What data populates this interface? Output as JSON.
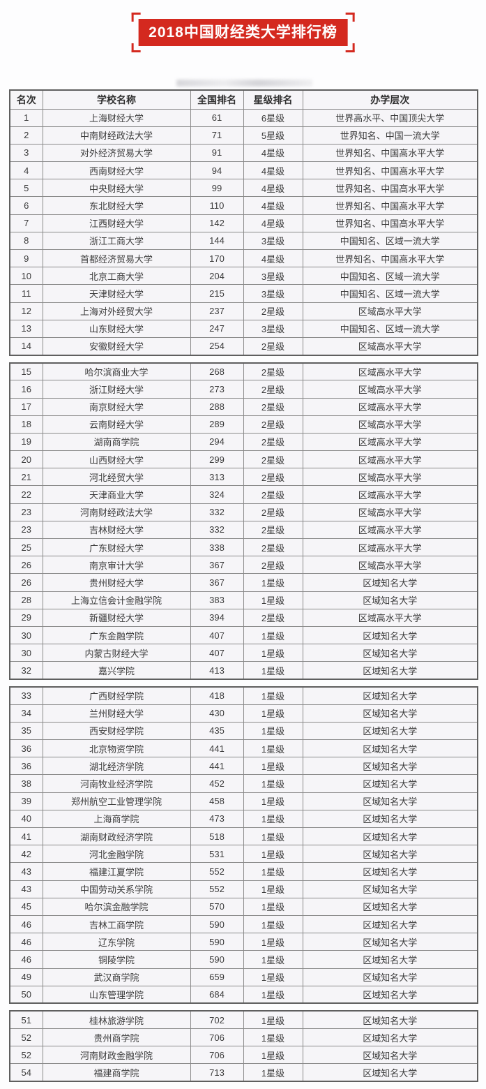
{
  "title": "2018中国财经类大学排行榜",
  "colors": {
    "accent_red": "#d4291f",
    "cell_background": "#f6f5f8",
    "border_outer": "#5f5f5f",
    "border_inner": "#8a8a8a",
    "text": "#3b3b3b"
  },
  "table": {
    "headers": [
      "名次",
      "学校名称",
      "全国排名",
      "星级排名",
      "办学层次"
    ],
    "column_keys": [
      "rank",
      "school",
      "national_rank",
      "star_rating",
      "tier"
    ],
    "sections": [
      {
        "rows": [
          [
            "1",
            "上海财经大学",
            "61",
            "6星级",
            "世界高水平、中国顶尖大学"
          ],
          [
            "2",
            "中南财经政法大学",
            "71",
            "5星级",
            "世界知名、中国一流大学"
          ],
          [
            "3",
            "对外经济贸易大学",
            "91",
            "4星级",
            "世界知名、中国高水平大学"
          ],
          [
            "4",
            "西南财经大学",
            "94",
            "4星级",
            "世界知名、中国高水平大学"
          ],
          [
            "5",
            "中央财经大学",
            "99",
            "4星级",
            "世界知名、中国高水平大学"
          ],
          [
            "6",
            "东北财经大学",
            "110",
            "4星级",
            "世界知名、中国高水平大学"
          ],
          [
            "7",
            "江西财经大学",
            "142",
            "4星级",
            "世界知名、中国高水平大学"
          ],
          [
            "8",
            "浙江工商大学",
            "144",
            "3星级",
            "中国知名、区域一流大学"
          ],
          [
            "9",
            "首都经济贸易大学",
            "170",
            "4星级",
            "世界知名、中国高水平大学"
          ],
          [
            "10",
            "北京工商大学",
            "204",
            "3星级",
            "中国知名、区域一流大学"
          ],
          [
            "11",
            "天津财经大学",
            "215",
            "3星级",
            "中国知名、区域一流大学"
          ],
          [
            "12",
            "上海对外经贸大学",
            "237",
            "2星级",
            "区域高水平大学"
          ],
          [
            "13",
            "山东财经大学",
            "247",
            "3星级",
            "中国知名、区域一流大学"
          ],
          [
            "14",
            "安徽财经大学",
            "254",
            "2星级",
            "区域高水平大学"
          ]
        ]
      },
      {
        "rows": [
          [
            "15",
            "哈尔滨商业大学",
            "268",
            "2星级",
            "区域高水平大学"
          ],
          [
            "16",
            "浙江财经大学",
            "273",
            "2星级",
            "区域高水平大学"
          ],
          [
            "17",
            "南京财经大学",
            "288",
            "2星级",
            "区域高水平大学"
          ],
          [
            "18",
            "云南财经大学",
            "289",
            "2星级",
            "区域高水平大学"
          ],
          [
            "19",
            "湖南商学院",
            "294",
            "2星级",
            "区域高水平大学"
          ],
          [
            "20",
            "山西财经大学",
            "299",
            "2星级",
            "区域高水平大学"
          ],
          [
            "21",
            "河北经贸大学",
            "313",
            "2星级",
            "区域高水平大学"
          ],
          [
            "22",
            "天津商业大学",
            "324",
            "2星级",
            "区域高水平大学"
          ],
          [
            "23",
            "河南财经政法大学",
            "332",
            "2星级",
            "区域高水平大学"
          ],
          [
            "23",
            "吉林财经大学",
            "332",
            "2星级",
            "区域高水平大学"
          ],
          [
            "25",
            "广东财经大学",
            "338",
            "2星级",
            "区域高水平大学"
          ],
          [
            "26",
            "南京审计大学",
            "367",
            "2星级",
            "区域高水平大学"
          ],
          [
            "26",
            "贵州财经大学",
            "367",
            "1星级",
            "区域知名大学"
          ],
          [
            "28",
            "上海立信会计金融学院",
            "383",
            "1星级",
            "区域知名大学"
          ],
          [
            "29",
            "新疆财经大学",
            "394",
            "2星级",
            "区域高水平大学"
          ],
          [
            "30",
            "广东金融学院",
            "407",
            "1星级",
            "区域知名大学"
          ],
          [
            "30",
            "内蒙古财经大学",
            "407",
            "1星级",
            "区域知名大学"
          ],
          [
            "32",
            "嘉兴学院",
            "413",
            "1星级",
            "区域知名大学"
          ]
        ]
      },
      {
        "rows": [
          [
            "33",
            "广西财经学院",
            "418",
            "1星级",
            "区域知名大学"
          ],
          [
            "34",
            "兰州财经大学",
            "430",
            "1星级",
            "区域知名大学"
          ],
          [
            "35",
            "西安财经学院",
            "435",
            "1星级",
            "区域知名大学"
          ],
          [
            "36",
            "北京物资学院",
            "441",
            "1星级",
            "区域知名大学"
          ],
          [
            "36",
            "湖北经济学院",
            "441",
            "1星级",
            "区域知名大学"
          ],
          [
            "38",
            "河南牧业经济学院",
            "452",
            "1星级",
            "区域知名大学"
          ],
          [
            "39",
            "郑州航空工业管理学院",
            "458",
            "1星级",
            "区域知名大学"
          ],
          [
            "40",
            "上海商学院",
            "473",
            "1星级",
            "区域知名大学"
          ],
          [
            "41",
            "湖南财政经济学院",
            "518",
            "1星级",
            "区域知名大学"
          ],
          [
            "42",
            "河北金融学院",
            "531",
            "1星级",
            "区域知名大学"
          ],
          [
            "43",
            "福建江夏学院",
            "552",
            "1星级",
            "区域知名大学"
          ],
          [
            "43",
            "中国劳动关系学院",
            "552",
            "1星级",
            "区域知名大学"
          ],
          [
            "45",
            "哈尔滨金融学院",
            "570",
            "1星级",
            "区域知名大学"
          ],
          [
            "46",
            "吉林工商学院",
            "590",
            "1星级",
            "区域知名大学"
          ],
          [
            "46",
            "辽东学院",
            "590",
            "1星级",
            "区域知名大学"
          ],
          [
            "46",
            "铜陵学院",
            "590",
            "1星级",
            "区域知名大学"
          ],
          [
            "49",
            "武汉商学院",
            "659",
            "1星级",
            "区域知名大学"
          ],
          [
            "50",
            "山东管理学院",
            "684",
            "1星级",
            "区域知名大学"
          ]
        ]
      },
      {
        "rows": [
          [
            "51",
            "桂林旅游学院",
            "702",
            "1星级",
            "区域知名大学"
          ],
          [
            "52",
            "贵州商学院",
            "706",
            "1星级",
            "区域知名大学"
          ],
          [
            "52",
            "河南财政金融学院",
            "706",
            "1星级",
            "区域知名大学"
          ],
          [
            "54",
            "福建商学院",
            "713",
            "1星级",
            "区域知名大学"
          ]
        ]
      }
    ]
  }
}
